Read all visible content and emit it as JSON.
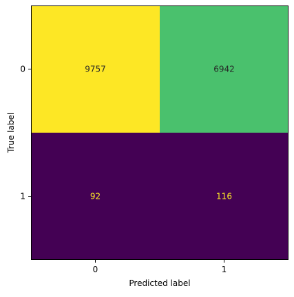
{
  "chart_data": {
    "type": "heatmap",
    "xlabel": "Predicted label",
    "ylabel": "True label",
    "x_categories": [
      "0",
      "1"
    ],
    "y_categories": [
      "0",
      "1"
    ],
    "values": [
      [
        9757,
        6942
      ],
      [
        92,
        116
      ]
    ],
    "colormap": "viridis",
    "cell_colors": [
      [
        "#fde725",
        "#4ac16d"
      ],
      [
        "#440154",
        "#440154"
      ]
    ],
    "text_colors": [
      [
        "#262626",
        "#262626"
      ],
      [
        "#fde725",
        "#fde725"
      ]
    ],
    "grid": false
  }
}
